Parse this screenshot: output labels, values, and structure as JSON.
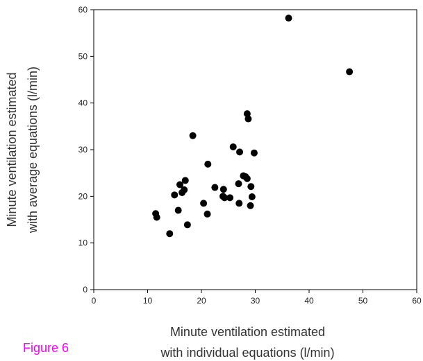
{
  "chart_data": {
    "type": "scatter",
    "title": "",
    "xlabel": [
      "Minute ventilation estimated",
      "with individual equations (l/min)"
    ],
    "ylabel": [
      "Minute ventilation estimated",
      "with average equations (l/min)"
    ],
    "xlim": [
      0,
      60
    ],
    "ylim": [
      0,
      60
    ],
    "x_ticks": [
      "0",
      "10",
      "20",
      "30",
      "40",
      "50",
      "60"
    ],
    "y_ticks": [
      "0",
      "10",
      "20",
      "30",
      "40",
      "50",
      "60"
    ],
    "grid": false,
    "legend": "none",
    "marker_color": "#000000",
    "series": [
      {
        "points": [
          [
            11.5,
            16.3
          ],
          [
            11.7,
            15.5
          ],
          [
            14.1,
            12.0
          ],
          [
            15.0,
            20.3
          ],
          [
            15.7,
            17.0
          ],
          [
            16.0,
            22.5
          ],
          [
            16.4,
            20.8
          ],
          [
            16.8,
            21.4
          ],
          [
            17.0,
            23.4
          ],
          [
            17.4,
            13.9
          ],
          [
            18.4,
            33.0
          ],
          [
            20.4,
            18.5
          ],
          [
            21.1,
            16.2
          ],
          [
            21.2,
            26.9
          ],
          [
            22.5,
            21.9
          ],
          [
            24.0,
            20.0
          ],
          [
            24.1,
            21.5
          ],
          [
            24.3,
            19.7
          ],
          [
            25.3,
            19.7
          ],
          [
            25.9,
            30.6
          ],
          [
            26.9,
            22.7
          ],
          [
            27.0,
            18.5
          ],
          [
            27.1,
            29.5
          ],
          [
            27.8,
            24.4
          ],
          [
            28.2,
            24.2
          ],
          [
            28.5,
            23.8
          ],
          [
            28.5,
            37.7
          ],
          [
            28.7,
            36.6
          ],
          [
            29.1,
            18.0
          ],
          [
            29.2,
            22.1
          ],
          [
            29.4,
            19.9
          ],
          [
            29.8,
            29.3
          ],
          [
            36.2,
            58.2
          ],
          [
            47.5,
            46.7
          ]
        ]
      }
    ]
  },
  "figure_label": {
    "text": "Figure 6",
    "color": "#ff00ff"
  }
}
